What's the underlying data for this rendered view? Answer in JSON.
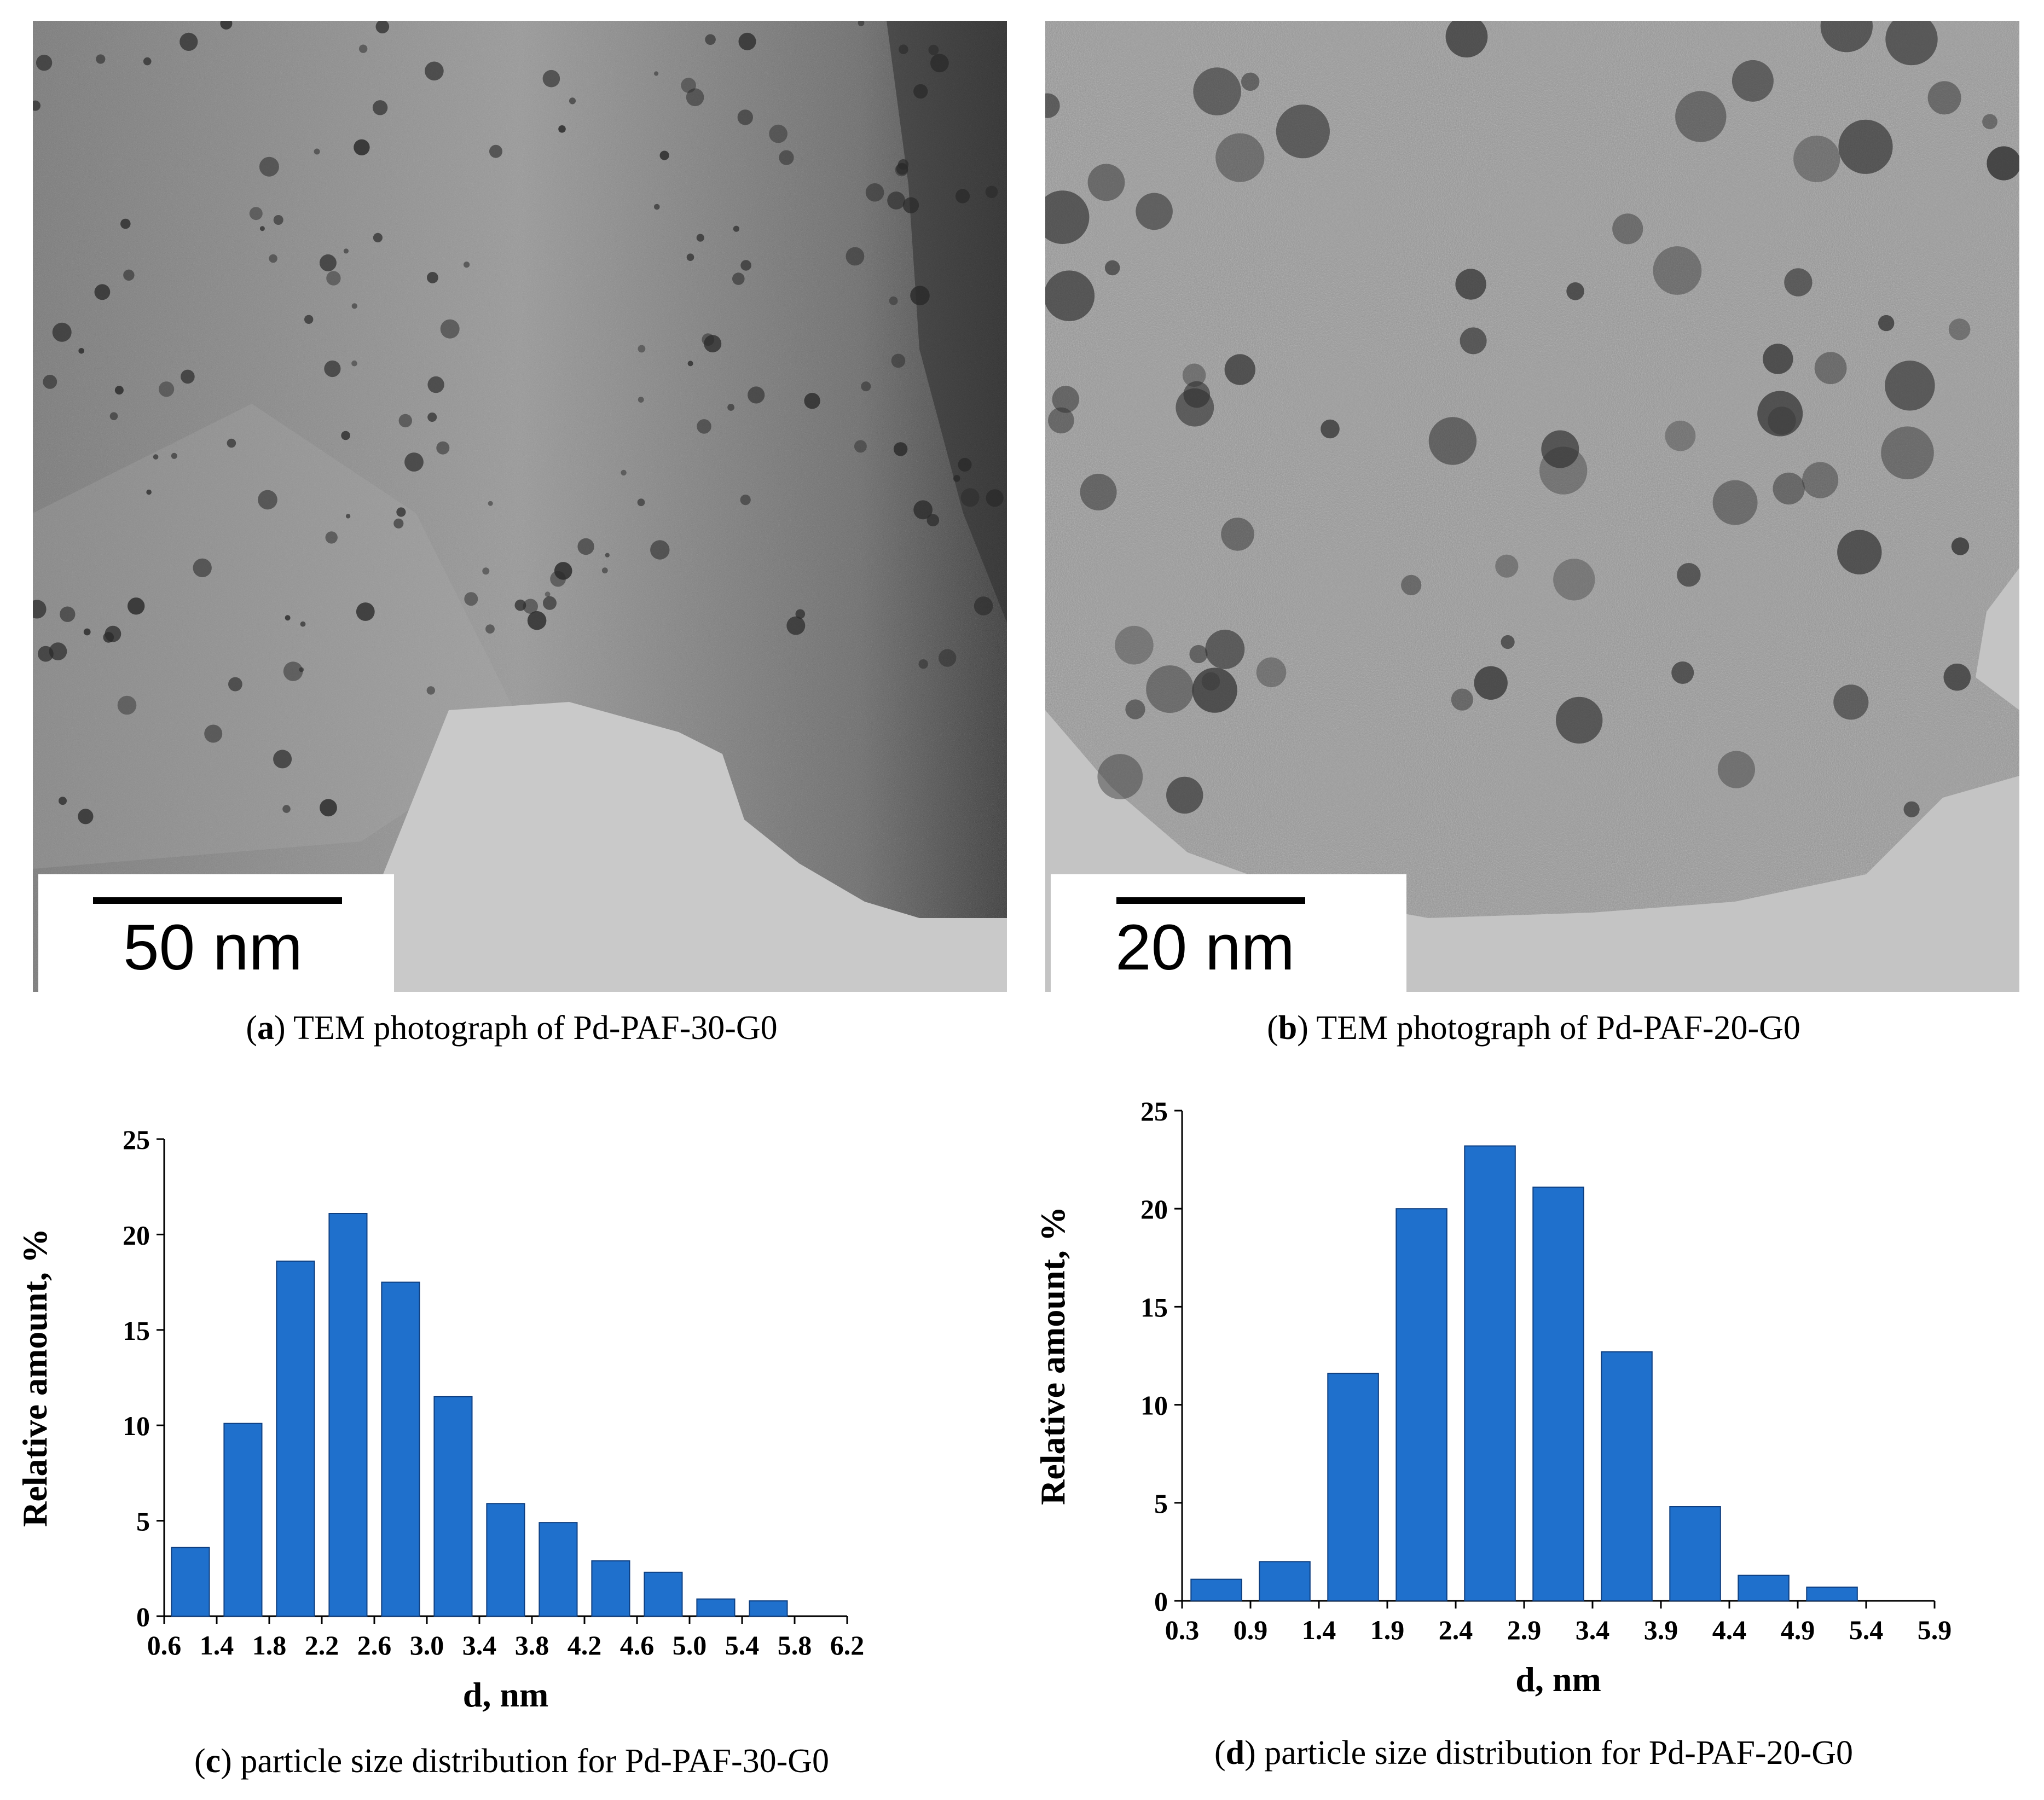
{
  "panels": {
    "a": {
      "letter": "a",
      "caption": " TEM photograph of Pd-PAF-30-G0",
      "scale_label": "50 nm"
    },
    "b": {
      "letter": "b",
      "caption": " TEM photograph of Pd-PAF-20-G0",
      "scale_label": "20 nm"
    },
    "c": {
      "letter": "c",
      "caption": " particle size distribution for Pd-PAF-30-G0"
    },
    "d": {
      "letter": "d",
      "caption": " particle size distribution for Pd-PAF-20-G0"
    }
  },
  "colors": {
    "bar_fill": "#1f70cc",
    "bar_stroke": "#0d3e80",
    "tem_bg_a": "#8c8c8c",
    "tem_bg_b": "#a6a6a6"
  },
  "chart_data": [
    {
      "id": "c",
      "type": "bar",
      "title": "",
      "xlabel": "d, nm",
      "ylabel": "Relative amount, %",
      "x_ticks": [
        "0.6",
        "1.4",
        "1.8",
        "2.2",
        "2.6",
        "3.0",
        "3.4",
        "3.8",
        "4.2",
        "4.6",
        "5.0",
        "5.4",
        "5.8",
        "6.2"
      ],
      "categories": [
        "1.4",
        "1.8",
        "2.2",
        "2.6",
        "3.0",
        "3.4",
        "3.8",
        "4.2",
        "4.6",
        "5.0",
        "5.4",
        "5.8"
      ],
      "values": [
        3.6,
        10.1,
        18.6,
        21.1,
        17.5,
        11.5,
        5.9,
        4.9,
        2.9,
        2.3,
        0.9,
        0.8
      ],
      "ylim": [
        0,
        25
      ],
      "y_ticks": [
        "0",
        "5",
        "10",
        "15",
        "20",
        "25"
      ],
      "grid": false
    },
    {
      "id": "d",
      "type": "bar",
      "title": "",
      "xlabel": "d, nm",
      "ylabel": "Relative amount, %",
      "x_ticks": [
        "0.3",
        "0.9",
        "1.4",
        "1.9",
        "2.4",
        "2.9",
        "3.4",
        "3.9",
        "4.4",
        "4.9",
        "5.4",
        "5.9"
      ],
      "categories": [
        "0.9",
        "1.4",
        "1.9",
        "2.4",
        "2.9",
        "3.4",
        "3.9",
        "4.4",
        "4.9",
        "5.4"
      ],
      "values": [
        1.1,
        2.0,
        11.6,
        20.0,
        23.2,
        21.1,
        12.7,
        4.8,
        1.3,
        0.7
      ],
      "ylim": [
        0,
        25
      ],
      "y_ticks": [
        "0",
        "5",
        "10",
        "15",
        "20",
        "25"
      ],
      "grid": false
    }
  ]
}
